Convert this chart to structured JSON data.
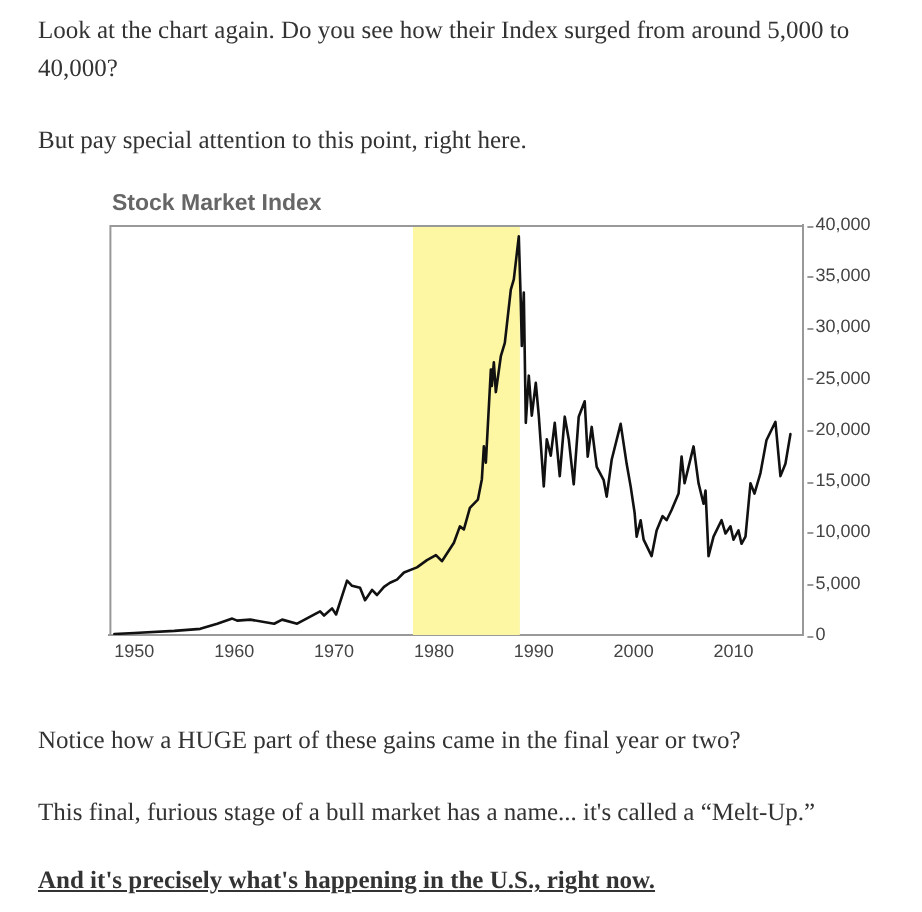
{
  "chart_data": {
    "type": "line",
    "title": "Stock Market Index",
    "annotations": [
      "Look at the chart again. Do you see how their Index surged from around 5,000 to 40,000?",
      "But pay special attention to this point, right here.",
      "Notice how a HUGE part of these gains came in the final year or two?",
      "This final, furious stage of a bull market has a name... it's called a “Melt-Up.”",
      "And it's precisely what's happening in the U.S., right now."
    ],
    "x": [
      1948,
      1950,
      1954,
      1956.6,
      1958.3,
      1959.8,
      1960.3,
      1961.6,
      1964,
      1964.8,
      1966.3,
      1968.6,
      1969,
      1969.8,
      1970.2,
      1971.3,
      1971.8,
      1972.6,
      1973.1,
      1973.8,
      1974.3,
      1975,
      1975.6,
      1976.3,
      1977,
      1978.3,
      1979.3,
      1980.2,
      1980.8,
      1982,
      1982.6,
      1983,
      1983.6,
      1984.4,
      1984.8,
      1985,
      1985.2,
      1985.7,
      1985.8,
      1986,
      1986.2,
      1986.7,
      1987.1,
      1987.7,
      1988,
      1988.5,
      1988.7,
      1988.8,
      1989,
      1989.2,
      1989.5,
      1989.8,
      1990.2,
      1990.5,
      1991,
      1991.3,
      1991.7,
      1992.1,
      1992.6,
      1993.1,
      1993.5,
      1994,
      1994.5,
      1995.1,
      1995.4,
      1995.8,
      1996.3,
      1997,
      1997.3,
      1997.8,
      1998.7,
      1999.3,
      1999.7,
      2000.1,
      2000.3,
      2000.7,
      2001,
      2001.8,
      2002.3,
      2002.9,
      2003.3,
      2003.8,
      2004.5,
      2004.8,
      2005.1,
      2006,
      2006.5,
      2007,
      2007.2,
      2007.5,
      2008,
      2008.8,
      2009.2,
      2009.7,
      2010,
      2010.5,
      2010.8,
      2011.2,
      2011.7,
      2012.1,
      2012.7,
      2013.3,
      2014.2,
      2014.7,
      2015.2,
      2015.7
    ],
    "values": [
      100,
      200,
      400,
      600,
      1100,
      1600,
      1400,
      1500,
      1100,
      1500,
      1100,
      2300,
      1900,
      2600,
      2000,
      5300,
      4800,
      4600,
      3400,
      4400,
      3900,
      4700,
      5100,
      5400,
      6100,
      6600,
      7300,
      7800,
      7200,
      9000,
      10600,
      10300,
      12400,
      13200,
      15200,
      18400,
      16800,
      25900,
      24300,
      26600,
      23700,
      27200,
      28500,
      33700,
      34700,
      38900,
      32400,
      28200,
      33400,
      20700,
      25300,
      21400,
      24600,
      21400,
      14500,
      19100,
      17500,
      20700,
      15500,
      21300,
      19100,
      14700,
      21300,
      22800,
      17400,
      20300,
      16400,
      15100,
      13500,
      17100,
      20600,
      16700,
      14500,
      11900,
      9600,
      11200,
      9300,
      7700,
      10200,
      11600,
      11200,
      12200,
      13800,
      17400,
      14800,
      18400,
      14800,
      12800,
      14100,
      7700,
      9600,
      11200,
      9900,
      10600,
      9300,
      10200,
      8900,
      9600,
      14800,
      13800,
      15800,
      19000,
      20800,
      15500,
      16700,
      19600
    ],
    "color": "#111111",
    "bands": [
      {
        "axis": "x",
        "from": 1977.9,
        "to": 1988.6,
        "color": "#fdf6a3"
      }
    ],
    "xlim": [
      1947.5,
      2017
    ],
    "xticks": [
      1950,
      1960,
      1970,
      1980,
      1990,
      2000,
      2010
    ],
    "ylim": [
      0,
      40000
    ],
    "yticks": [
      0,
      {
        "value": 5000,
        "label": "5,000"
      },
      {
        "value": 10000,
        "label": "10,000"
      },
      {
        "value": 15000,
        "label": "15,000"
      },
      {
        "value": 20000,
        "label": "20,000"
      },
      {
        "value": 25000,
        "label": "25,000"
      },
      {
        "value": 30000,
        "label": "30,000"
      },
      {
        "value": 35000,
        "label": "35,000"
      },
      {
        "value": 40000,
        "label": "40,000"
      }
    ]
  }
}
